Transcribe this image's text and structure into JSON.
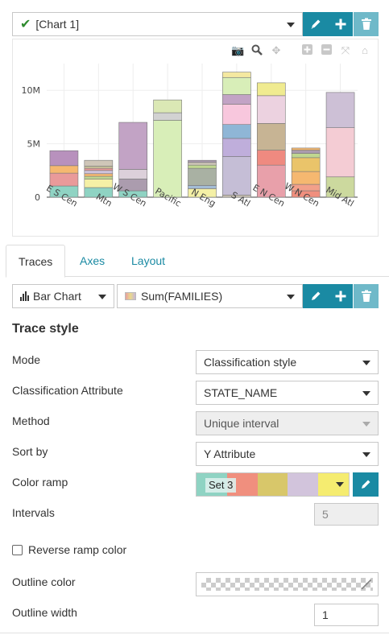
{
  "chart_selector": {
    "value": "[Chart 1]"
  },
  "toolbar_icons": {
    "edit": "pencil-icon",
    "add": "plus-icon",
    "delete": "trash-icon"
  },
  "modebar": {
    "icons": [
      "camera-icon",
      "zoom-icon",
      "pan-icon",
      "zoom-in-icon",
      "zoom-out-icon",
      "autoscale-icon",
      "home-icon"
    ]
  },
  "chart_data": {
    "type": "bar",
    "stacked": true,
    "categories": [
      "E S Cen",
      "Mtn",
      "W S Cen",
      "Pacific",
      "N Eng",
      "S Atl",
      "E N Cen",
      "W N Cen",
      "Mid Atl"
    ],
    "yticks": [
      "0",
      "5M",
      "10M"
    ],
    "ytick_values": [
      0,
      5000000,
      10000000
    ],
    "ylim": [
      0,
      12500000
    ],
    "grid": true,
    "stacks": [
      [
        {
          "v": 1050000,
          "c": "#8fd3c3"
        },
        {
          "v": 1200000,
          "c": "#e99a9a"
        },
        {
          "v": 700000,
          "c": "#f5b870"
        },
        {
          "v": 1400000,
          "c": "#b891bd"
        }
      ],
      [
        {
          "v": 900000,
          "c": "#8fd3c3"
        },
        {
          "v": 800000,
          "c": "#f4f0a6"
        },
        {
          "v": 250000,
          "c": "#c0d790"
        },
        {
          "v": 250000,
          "c": "#f5b870"
        },
        {
          "v": 300000,
          "c": "#d0c4dc"
        },
        {
          "v": 200000,
          "c": "#e99a9a"
        },
        {
          "v": 200000,
          "c": "#c9c39a"
        },
        {
          "v": 550000,
          "c": "#cfc6b8"
        }
      ],
      [
        {
          "v": 600000,
          "c": "#8fd3c3"
        },
        {
          "v": 1100000,
          "c": "#ab9cae"
        },
        {
          "v": 900000,
          "c": "#dcd0da"
        },
        {
          "v": 4400000,
          "c": "#c2a3c5"
        }
      ],
      [
        {
          "v": 7200000,
          "c": "#d8eeb8"
        },
        {
          "v": 700000,
          "c": "#d2d2d2"
        },
        {
          "v": 1200000,
          "c": "#dbe8b5"
        }
      ],
      [
        {
          "v": 800000,
          "c": "#f4f0a6"
        },
        {
          "v": 300000,
          "c": "#a3bcd6"
        },
        {
          "v": 1600000,
          "c": "#a9b1a3"
        },
        {
          "v": 300000,
          "c": "#c0d790"
        },
        {
          "v": 250000,
          "c": "#cfc6b8"
        },
        {
          "v": 200000,
          "c": "#ab9cae"
        }
      ],
      [
        {
          "v": 200000,
          "c": "#cfc6b8"
        },
        {
          "v": 3600000,
          "c": "#c5bed6"
        },
        {
          "v": 1700000,
          "c": "#bfaedb"
        },
        {
          "v": 1300000,
          "c": "#8fb6d6"
        },
        {
          "v": 1900000,
          "c": "#f8c7dd"
        },
        {
          "v": 900000,
          "c": "#c2a3c5"
        },
        {
          "v": 1600000,
          "c": "#d8eeb8"
        },
        {
          "v": 500000,
          "c": "#f4e8a0"
        }
      ],
      [
        {
          "v": 3000000,
          "c": "#e8a0aa"
        },
        {
          "v": 1400000,
          "c": "#ef8a80"
        },
        {
          "v": 2500000,
          "c": "#c7b494"
        },
        {
          "v": 2600000,
          "c": "#ecd2e0"
        },
        {
          "v": 1200000,
          "c": "#f0eb90"
        }
      ],
      [
        {
          "v": 600000,
          "c": "#f08f7e"
        },
        {
          "v": 600000,
          "c": "#f2a08a"
        },
        {
          "v": 1200000,
          "c": "#f5b870"
        },
        {
          "v": 1300000,
          "c": "#eac46a"
        },
        {
          "v": 400000,
          "c": "#c0d790"
        },
        {
          "v": 300000,
          "c": "#ab9cae"
        },
        {
          "v": 200000,
          "c": "#f5b870"
        }
      ],
      [
        {
          "v": 1900000,
          "c": "#ccd99e"
        },
        {
          "v": 4600000,
          "c": "#f4ccd4"
        },
        {
          "v": 3300000,
          "c": "#cdc0d6"
        }
      ]
    ]
  },
  "tabs": [
    {
      "label": "Traces",
      "active": true
    },
    {
      "label": "Axes",
      "active": false
    },
    {
      "label": "Layout",
      "active": false
    }
  ],
  "trace": {
    "type_label": "Bar Chart",
    "value_label": "Sum(FAMILIES)"
  },
  "form": {
    "section_title": "Trace style",
    "mode_label": "Mode",
    "mode_value": "Classification style",
    "class_attr_label": "Classification Attribute",
    "class_attr_value": "STATE_NAME",
    "method_label": "Method",
    "method_value": "Unique interval",
    "sort_label": "Sort by",
    "sort_value": "Y Attribute",
    "ramp_label": "Color ramp",
    "ramp_value": "Set 3",
    "ramp_colors": [
      "#8fd3c3",
      "#f08f7e",
      "#d8c76a",
      "#d2c4dc",
      "#f5ec70"
    ],
    "intervals_label": "Intervals",
    "intervals_value": "5",
    "reverse_label": "Reverse ramp color",
    "outline_color_label": "Outline color",
    "outline_width_label": "Outline width",
    "outline_width_value": "1"
  }
}
